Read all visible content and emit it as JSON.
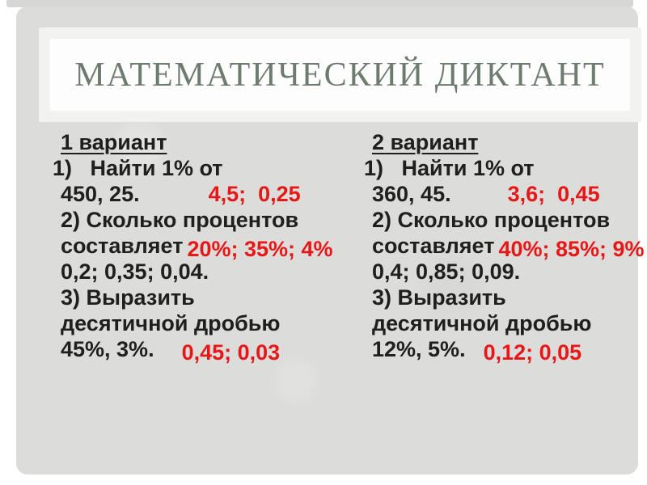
{
  "slide": {
    "title": "МАТЕМАТИЧЕСКИЙ ДИКТАНТ"
  },
  "columns": [
    {
      "header": "1 вариант",
      "lines": [
        {
          "text": "1)   Найти 1% от"
        },
        {
          "text": "450, 25.",
          "answer": "4,5;  0,25"
        },
        {
          "text": "2) Сколько процентов"
        },
        {
          "text": "составляет",
          "answer": "20%; 35%; 4%"
        },
        {
          "text": "0,2; 0,35; 0,04."
        },
        {
          "text": "3) Выразить"
        },
        {
          "text": "десятичной дробью"
        },
        {
          "text": "45%, 3%.",
          "answer": "0,45; 0,03"
        }
      ]
    },
    {
      "header": "2 вариант",
      "lines": [
        {
          "text": "1)   Найти 1% от"
        },
        {
          "text": "360, 45.",
          "answer": "3,6;  0,45"
        },
        {
          "text": "2) Сколько процентов"
        },
        {
          "text": "составляет",
          "answer": "40%; 85%; 9%"
        },
        {
          "text": "0,4; 0,85; 0,09."
        },
        {
          "text": "3) Выразить"
        },
        {
          "text": "десятичной дробью"
        },
        {
          "text": "12%, 5%.",
          "answer": "0,12; 0,05"
        }
      ]
    }
  ],
  "colors": {
    "title_text": "#6e7c70",
    "body_text": "#1f1f1f",
    "answer_red": "#e81717",
    "panel_gray": "#dcdcda",
    "top_strip_gray": "#d7d7d5",
    "title_frame": "#f2f2f0",
    "title_inner": "#fdfdfd",
    "page_background": "#ffffff"
  }
}
